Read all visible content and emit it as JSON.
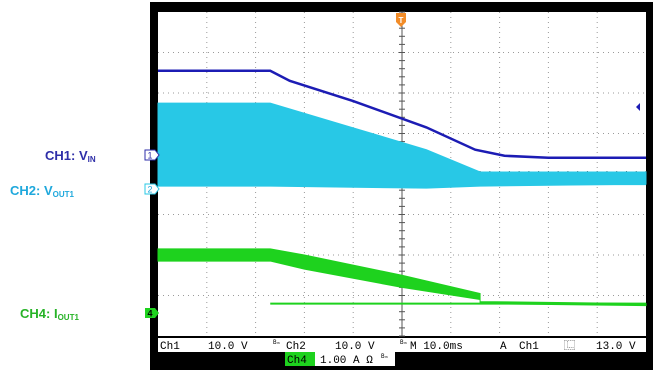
{
  "side_labels": {
    "ch1": {
      "text": "CH1: V",
      "sub": "IN",
      "color": "#2e2ea8"
    },
    "ch2": {
      "text": "CH2: V",
      "sub": "OUT1",
      "color": "#1fa8dc"
    },
    "ch4": {
      "text": "CH4: I",
      "sub": "OUT1",
      "color": "#27b327"
    }
  },
  "trigger_marker": "T",
  "channel_markers": {
    "ch1": "1",
    "ch2": "2",
    "ch4": "4"
  },
  "status_bar": {
    "ch1_name": "Ch1",
    "ch1_scale": "10.0 V",
    "ch1_bw": "Bₘ",
    "ch2_name": "Ch2",
    "ch2_scale": "10.0 V",
    "ch2_bw": "Bₘ",
    "timebase": "M 10.0ms",
    "acq": "A",
    "trig_src": "Ch1",
    "trig_slope": "⿺",
    "trig_level": "13.0 V",
    "ch4_name": "Ch4",
    "ch4_scale": "1.00 A Ω",
    "ch4_bw": "Bₘ"
  },
  "colors": {
    "ch1": "#1c1cb4",
    "ch2": "#28c8e6",
    "ch4": "#1ed21e",
    "grid": "#9a9a9a",
    "frame": "#000000"
  },
  "chart_data": {
    "type": "line",
    "title": "",
    "xlabel": "",
    "ylabel": "",
    "grid": true,
    "x_divisions": 10,
    "y_divisions": 8,
    "xlim": [
      0,
      10
    ],
    "ylim": [
      -4,
      4
    ],
    "series": [
      {
        "name": "CH1: VIN",
        "x": [
          0,
          2.3,
          2.7,
          4,
          5.5,
          6.5,
          7.1,
          8,
          10
        ],
        "y": [
          2.55,
          2.55,
          2.3,
          1.8,
          1.15,
          0.6,
          0.45,
          0.4,
          0.4
        ]
      },
      {
        "name": "CH2: VOUT1",
        "band": true,
        "x": [
          0,
          2.3,
          5.5,
          6.6,
          10
        ],
        "upper": [
          1.75,
          1.75,
          0.6,
          0.05,
          0.05
        ],
        "lower": [
          -0.3,
          -0.3,
          -0.35,
          -0.3,
          -0.25
        ],
        "line_y": -0.25
      },
      {
        "name": "CH4: IOUT1",
        "band": true,
        "x": [
          0,
          2.3,
          3,
          5,
          6.6,
          6.6,
          10
        ],
        "upper": [
          -1.85,
          -1.85,
          -2.0,
          -2.5,
          -2.95,
          -3.15,
          -3.2
        ],
        "lower": [
          -2.15,
          -2.15,
          -2.35,
          -2.8,
          -3.1,
          -3.2,
          -3.25
        ],
        "line_y": -3.2
      }
    ]
  }
}
